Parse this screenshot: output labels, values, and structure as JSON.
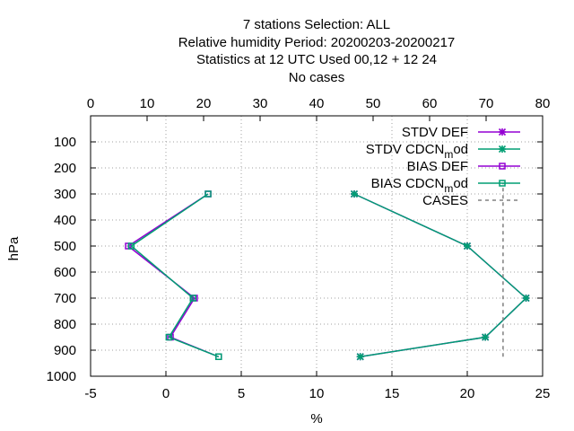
{
  "chart_data": {
    "type": "line",
    "title_lines": [
      "7 stations Selection: ALL",
      "Relative humidity  Period: 20200203-20200217",
      "Statistics at 12 UTC  Used  00,12  + 12 24",
      "No cases"
    ],
    "xlabel": "%",
    "ylabel": "hPa",
    "xlim": [
      -5,
      25
    ],
    "x_ticks": [
      "-5",
      "0",
      "5",
      "10",
      "15",
      "20",
      "25"
    ],
    "x2lim": [
      0,
      80
    ],
    "x2_ticks": [
      "0",
      "10",
      "20",
      "30",
      "40",
      "50",
      "60",
      "70",
      "80"
    ],
    "ylim": [
      1000,
      0
    ],
    "y_ticks": [
      "100",
      "200",
      "300",
      "400",
      "500",
      "600",
      "700",
      "800",
      "900",
      "1000"
    ],
    "grid": true,
    "legend_position": "top-right",
    "series": [
      {
        "name": "STDV DEF",
        "legend_main": "STDV DEF",
        "legend_sub": "",
        "legend_tail": "",
        "color": "#9400d3",
        "marker": "x",
        "points": [
          [
            12.5,
            300
          ],
          [
            20.0,
            500
          ],
          [
            23.9,
            700
          ],
          [
            21.2,
            850
          ],
          [
            12.9,
            925
          ]
        ]
      },
      {
        "name": "STDV CDCN_mod",
        "legend_main": "STDV CDCN",
        "legend_sub": "m",
        "legend_tail": "od",
        "color": "#009e73",
        "marker": "x",
        "points": [
          [
            12.5,
            300
          ],
          [
            20.0,
            500
          ],
          [
            23.9,
            700
          ],
          [
            21.2,
            850
          ],
          [
            12.9,
            925
          ]
        ]
      },
      {
        "name": "BIAS DEF",
        "legend_main": "BIAS DEF",
        "legend_sub": "",
        "legend_tail": "",
        "color": "#9400d3",
        "marker": "square",
        "points": [
          [
            2.8,
            300
          ],
          [
            -2.5,
            500
          ],
          [
            1.9,
            700
          ],
          [
            0.3,
            850
          ],
          [
            3.5,
            925
          ]
        ]
      },
      {
        "name": "BIAS CDCN_mod",
        "legend_main": "BIAS CDCN",
        "legend_sub": "m",
        "legend_tail": "od",
        "color": "#009e73",
        "marker": "square",
        "points": [
          [
            2.8,
            300
          ],
          [
            -2.3,
            500
          ],
          [
            1.8,
            700
          ],
          [
            0.2,
            850
          ],
          [
            3.5,
            925
          ]
        ]
      },
      {
        "name": "CASES",
        "legend_main": "CASES",
        "legend_sub": "",
        "legend_tail": "",
        "color": "#808080",
        "marker": "none",
        "x2_value": 73,
        "y_from": 925,
        "y_to": 260
      }
    ]
  }
}
